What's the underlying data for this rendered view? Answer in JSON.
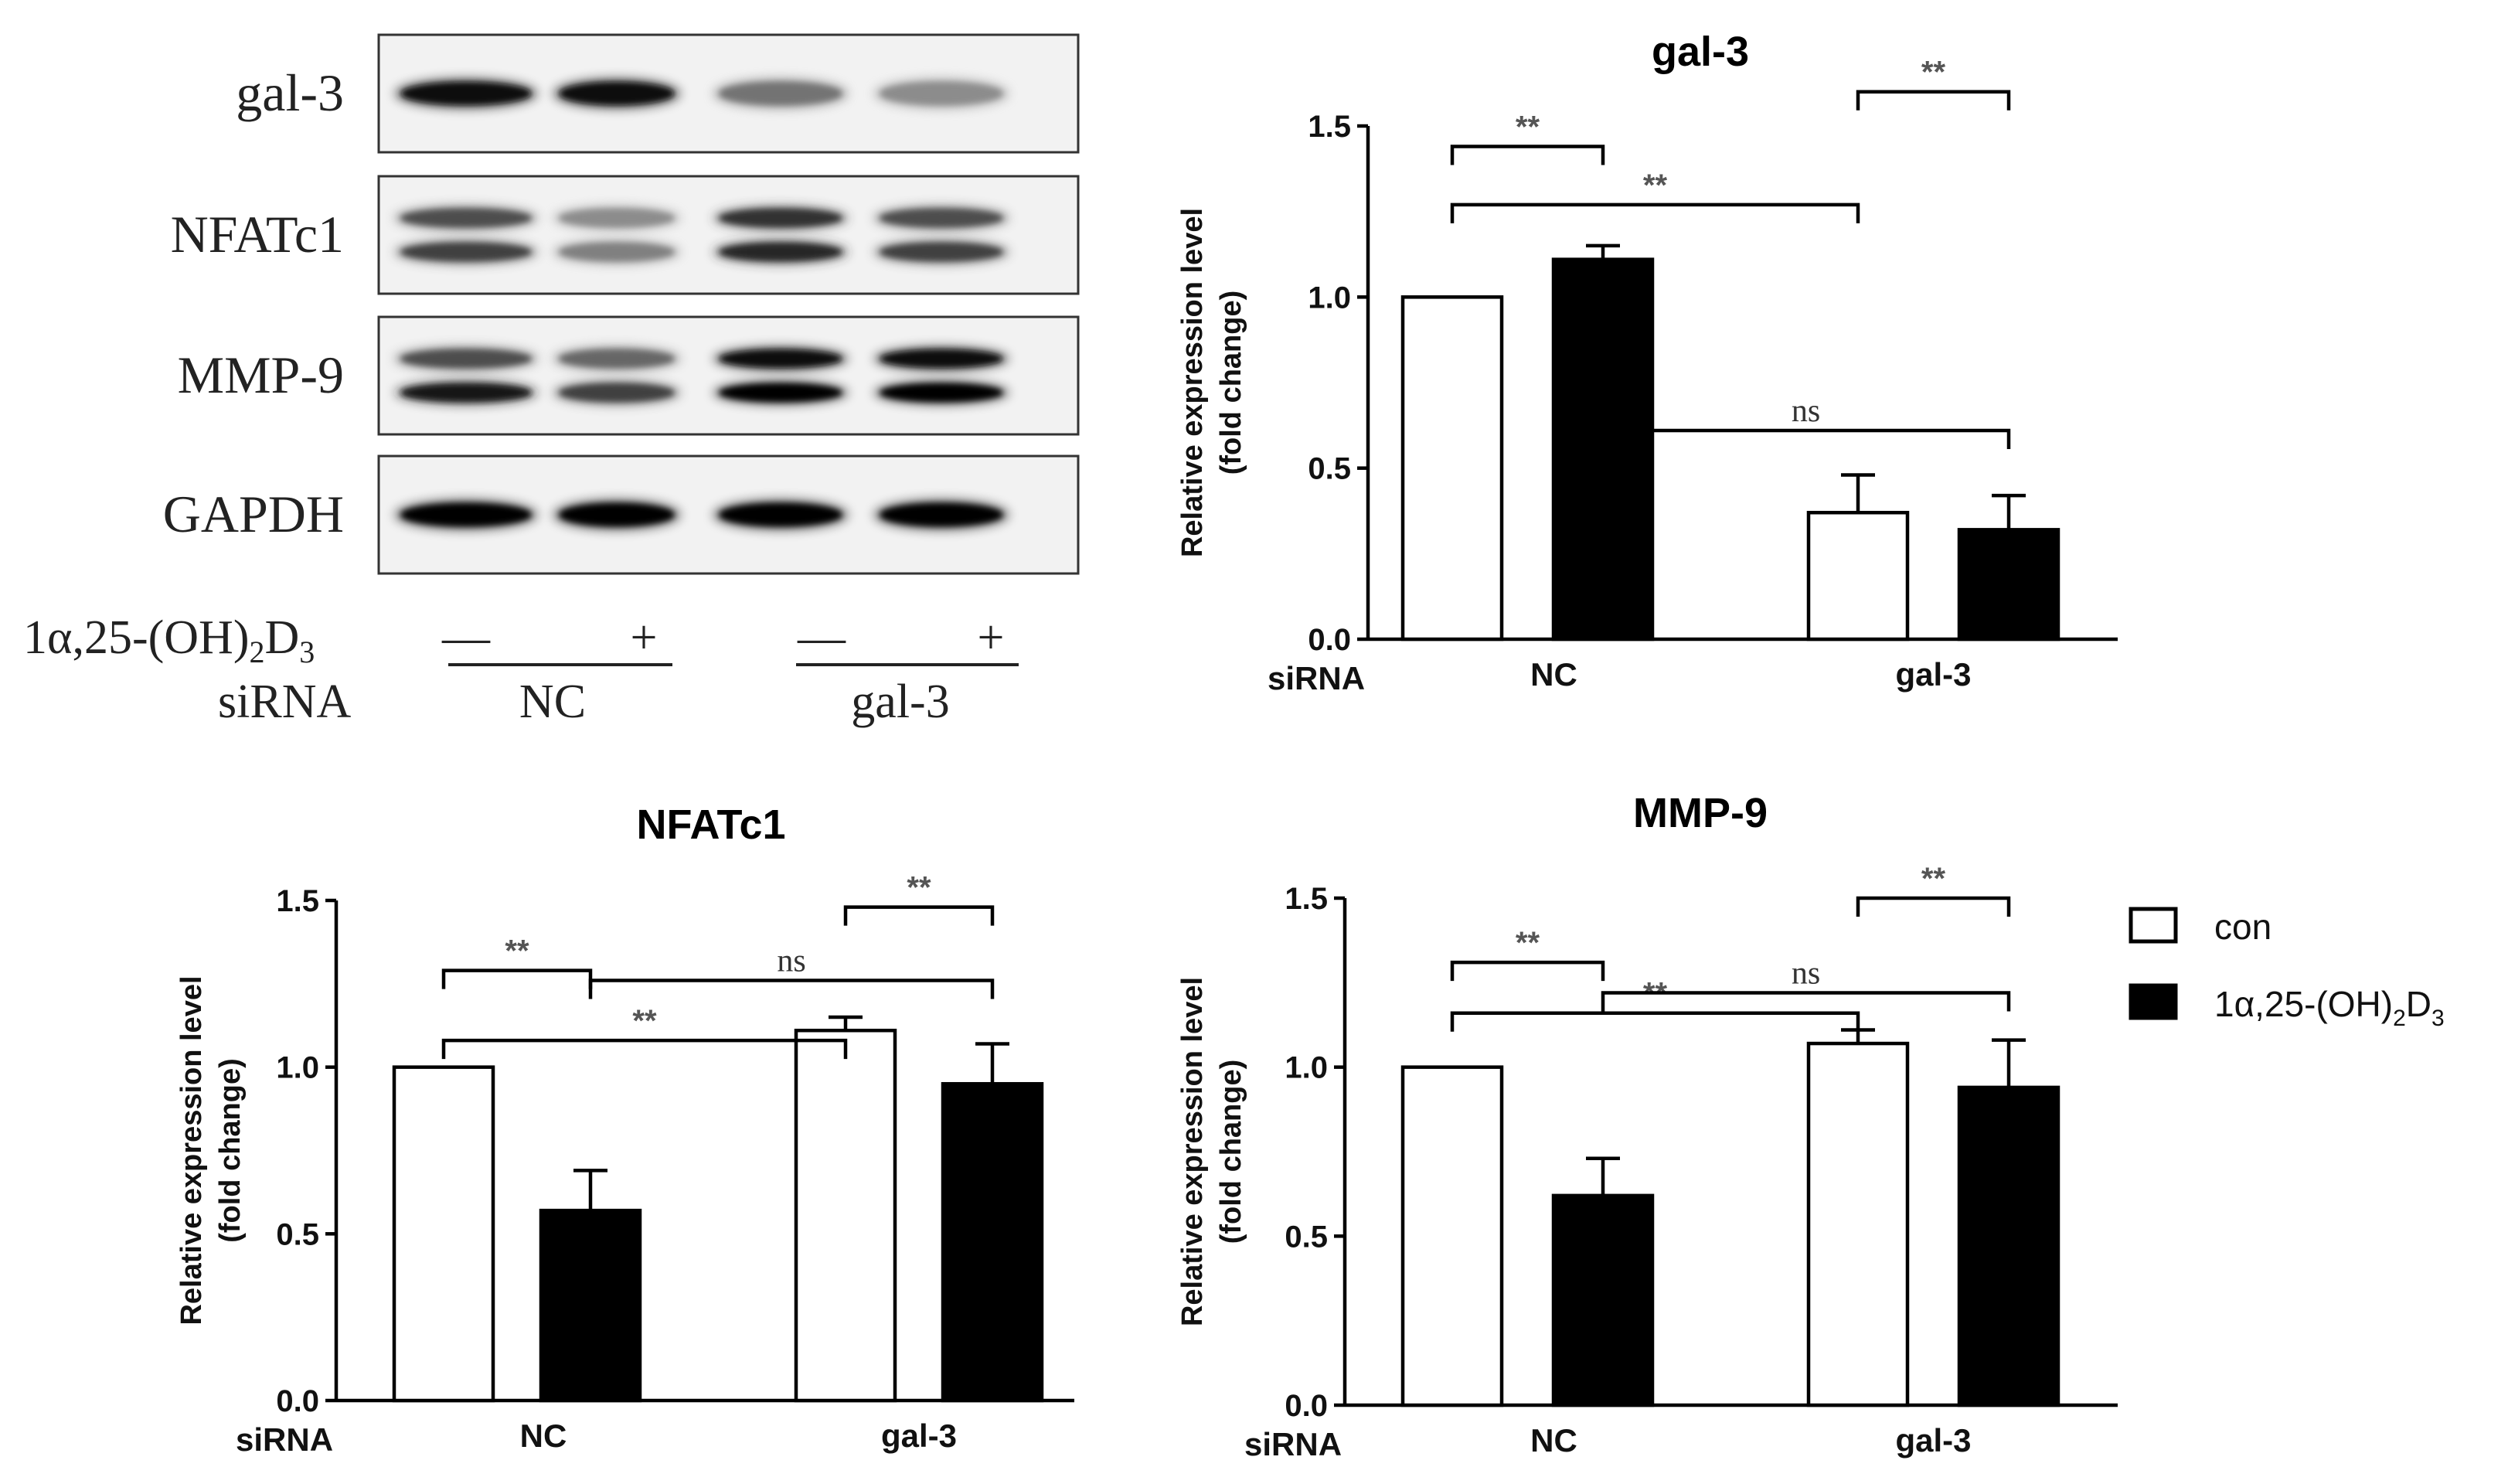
{
  "blot": {
    "proteins": [
      "gal-3",
      "NFATc1",
      "MMP-9",
      "GAPDH"
    ],
    "treatment_label": "1α,25-(OH)₂D₃",
    "treatment_marks": [
      "—",
      "+",
      "—",
      "+"
    ],
    "sirna_label": "siRNA",
    "sirna_groups": [
      "NC",
      "gal-3"
    ],
    "band_intensity": {
      "gal-3": [
        [
          0.95
        ],
        [
          0.95
        ],
        [
          0.55
        ],
        [
          0.45
        ]
      ],
      "NFATc1": [
        [
          0.7,
          0.75
        ],
        [
          0.45,
          0.5
        ],
        [
          0.8,
          0.85
        ],
        [
          0.7,
          0.75
        ]
      ],
      "MMP-9": [
        [
          0.7,
          0.9
        ],
        [
          0.6,
          0.75
        ],
        [
          0.95,
          1.0
        ],
        [
          0.95,
          1.0
        ]
      ],
      "GAPDH": [
        [
          1.0
        ],
        [
          1.0
        ],
        [
          1.0
        ],
        [
          1.0
        ]
      ]
    }
  },
  "ylabel_line1": "Relative  expression level",
  "ylabel_line2": "(fold change)",
  "xaxis_label": "siRNA",
  "legend": {
    "position": "right",
    "items": [
      {
        "label": "con",
        "color": "#ffffff"
      },
      {
        "label": "1α,25-(OH)",
        "sub": "2",
        "suffix": "D",
        "sub2": "3",
        "color": "#000000"
      }
    ]
  },
  "chart_data": [
    {
      "type": "bar",
      "title": "gal-3",
      "categories": [
        "NC",
        "gal-3"
      ],
      "series": [
        {
          "name": "con",
          "values": [
            1.0,
            0.37
          ],
          "errors": [
            0.0,
            0.11
          ]
        },
        {
          "name": "1α,25-(OH)2D3",
          "values": [
            1.11,
            0.32
          ],
          "errors": [
            0.04,
            0.1
          ]
        }
      ],
      "ylim": [
        0,
        1.5
      ],
      "yticks": [
        "0.0",
        "0.5",
        "1.0",
        "1.5"
      ],
      "significance": [
        {
          "label": "**",
          "from": [
            0,
            0
          ],
          "to": [
            0,
            1
          ],
          "y": 1.27
        },
        {
          "label": "**",
          "from": [
            0,
            0
          ],
          "to": [
            1,
            0
          ],
          "y": 1.44
        },
        {
          "label": "**",
          "from": [
            0,
            1
          ],
          "to": [
            1,
            1
          ],
          "y": 1.6
        },
        {
          "label": "ns",
          "from": [
            1,
            0
          ],
          "to": [
            1,
            1
          ],
          "y": 0.61
        }
      ]
    },
    {
      "type": "bar",
      "title": "NFATc1",
      "categories": [
        "NC",
        "gal-3"
      ],
      "series": [
        {
          "name": "con",
          "values": [
            1.0,
            1.11
          ],
          "errors": [
            0.0,
            0.04
          ]
        },
        {
          "name": "1α,25-(OH)2D3",
          "values": [
            0.57,
            0.95
          ],
          "errors": [
            0.12,
            0.12
          ]
        }
      ],
      "ylim": [
        0,
        1.5
      ],
      "yticks": [
        "0.0",
        "0.5",
        "1.0",
        "1.5"
      ],
      "significance": [
        {
          "label": "**",
          "from": [
            0,
            0
          ],
          "to": [
            0,
            1
          ],
          "y": 1.08
        },
        {
          "label": "**",
          "from": [
            0,
            0
          ],
          "to": [
            1,
            0
          ],
          "y": 1.29
        },
        {
          "label": "**",
          "from": [
            0,
            1
          ],
          "to": [
            1,
            1
          ],
          "y": 1.48
        },
        {
          "label": "ns",
          "from": [
            1,
            0
          ],
          "to": [
            1,
            1
          ],
          "y": 1.26
        }
      ]
    },
    {
      "type": "bar",
      "title": "MMP-9",
      "categories": [
        "NC",
        "gal-3"
      ],
      "series": [
        {
          "name": "con",
          "values": [
            1.0,
            1.07
          ],
          "errors": [
            0.0,
            0.04
          ]
        },
        {
          "name": "1α,25-(OH)2D3",
          "values": [
            0.62,
            0.94
          ],
          "errors": [
            0.11,
            0.14
          ]
        }
      ],
      "ylim": [
        0,
        1.5
      ],
      "yticks": [
        "0.0",
        "0.5",
        "1.0",
        "1.5"
      ],
      "significance": [
        {
          "label": "**",
          "from": [
            0,
            0
          ],
          "to": [
            0,
            1
          ],
          "y": 1.16
        },
        {
          "label": "**",
          "from": [
            0,
            0
          ],
          "to": [
            1,
            0
          ],
          "y": 1.31
        },
        {
          "label": "**",
          "from": [
            0,
            1
          ],
          "to": [
            1,
            1
          ],
          "y": 1.5
        },
        {
          "label": "ns",
          "from": [
            1,
            0
          ],
          "to": [
            1,
            1
          ],
          "y": 1.22
        }
      ]
    }
  ]
}
